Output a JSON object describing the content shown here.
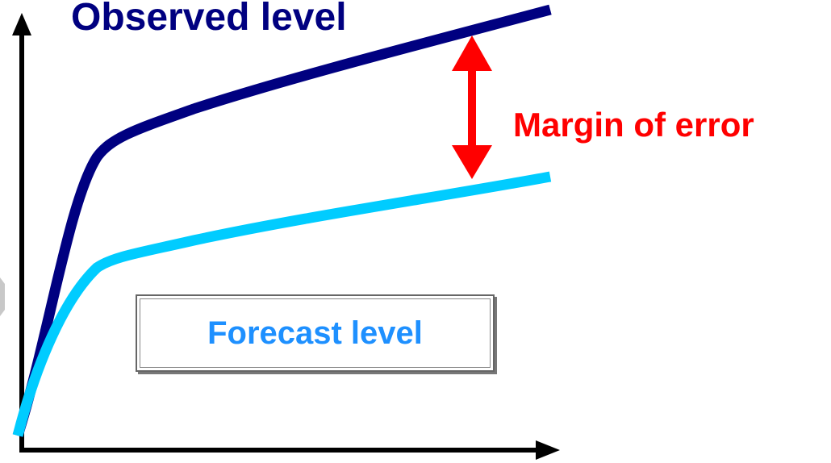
{
  "labels": {
    "observed": "Observed level",
    "margin": "Margin of error",
    "forecast": "Forecast level"
  },
  "colors": {
    "observed": "#000080",
    "forecast": "#00ccff",
    "margin": "#ff0000",
    "forecast_label": "#1e90ff",
    "axes": "#000000"
  }
}
